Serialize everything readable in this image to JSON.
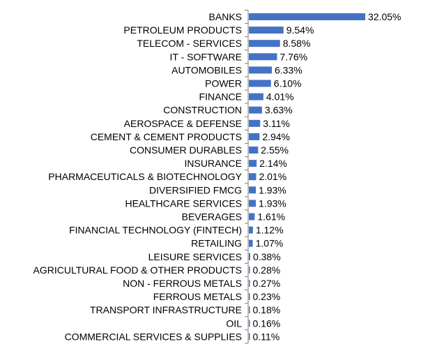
{
  "chart_data": {
    "type": "bar",
    "orientation": "horizontal",
    "categories": [
      "BANKS",
      "PETROLEUM PRODUCTS",
      "TELECOM - SERVICES",
      "IT - SOFTWARE",
      "AUTOMOBILES",
      "POWER",
      "FINANCE",
      "CONSTRUCTION",
      "AEROSPACE & DEFENSE",
      "CEMENT & CEMENT PRODUCTS",
      "CONSUMER DURABLES",
      "INSURANCE",
      "PHARMACEUTICALS & BIOTECHNOLOGY",
      "DIVERSIFIED FMCG",
      "HEALTHCARE SERVICES",
      "BEVERAGES",
      "FINANCIAL TECHNOLOGY (FINTECH)",
      "RETAILING",
      "LEISURE SERVICES",
      "AGRICULTURAL FOOD & OTHER PRODUCTS",
      "NON - FERROUS METALS",
      "FERROUS METALS",
      "TRANSPORT INFRASTRUCTURE",
      "OIL",
      "COMMERCIAL SERVICES & SUPPLIES"
    ],
    "values": [
      32.05,
      9.54,
      8.58,
      7.76,
      6.33,
      6.1,
      4.01,
      3.63,
      3.11,
      2.94,
      2.55,
      2.14,
      2.01,
      1.93,
      1.93,
      1.61,
      1.12,
      1.07,
      0.38,
      0.28,
      0.27,
      0.23,
      0.18,
      0.16,
      0.11
    ],
    "data_labels": [
      "32.05%",
      "9.54%",
      "8.58%",
      "7.76%",
      "6.33%",
      "6.10%",
      "4.01%",
      "3.63%",
      "3.11%",
      "2.94%",
      "2.55%",
      "2.14%",
      "2.01%",
      "1.93%",
      "1.93%",
      "1.61%",
      "1.12%",
      "1.07%",
      "0.38%",
      "0.28%",
      "0.27%",
      "0.23%",
      "0.18%",
      "0.16%",
      "0.11%"
    ],
    "xlim": [
      0,
      32.05
    ],
    "grid": false,
    "legend": "none",
    "bar_color": "#4472c4",
    "axis_color": "#7f7f7f"
  }
}
